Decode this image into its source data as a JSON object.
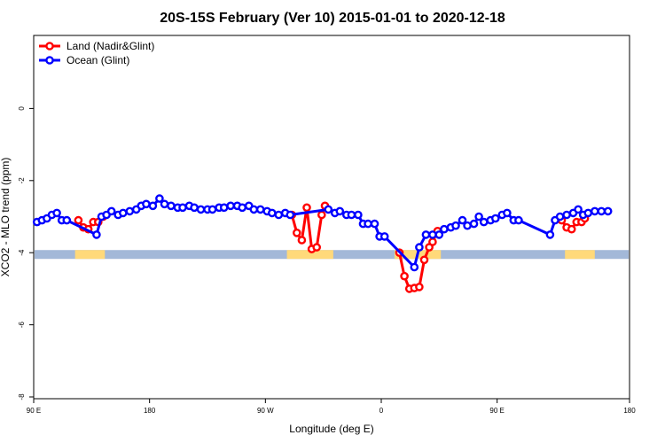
{
  "chart_data": {
    "type": "line",
    "title": "20S-15S February (Ver 10)   2015-01-01 to 2020-12-18",
    "xlabel": "Longitude (deg E)",
    "ylabel": "XCO2 - MLO trend (ppm)",
    "xlim": [
      90,
      450
    ],
    "ylim": [
      -8,
      2
    ],
    "x_ticks": [
      {
        "value": 90,
        "label": "90 E"
      },
      {
        "value": 160,
        "label": "180"
      },
      {
        "value": 230,
        "label": "90 W"
      },
      {
        "value": 300,
        "label": "0"
      },
      {
        "value": 370,
        "label": "90 E"
      },
      {
        "value": 450,
        "label": "180"
      }
    ],
    "y_ticks": [
      {
        "value": 0,
        "label": "0"
      },
      {
        "value": -2,
        "label": "-2"
      },
      {
        "value": -4,
        "label": "-4"
      },
      {
        "value": -6,
        "label": "-6"
      },
      {
        "value": -8,
        "label": "-8"
      }
    ],
    "grid": false,
    "legend_position": "top-left",
    "series": [
      {
        "name": "Land (Nadir&Glint)",
        "color": "#ff0000",
        "segments": [
          [
            [
              117,
              -3.1
            ],
            [
              120,
              -3.3
            ],
            [
              123,
              -3.35
            ],
            [
              126,
              -3.15
            ],
            [
              129,
              -3.15
            ],
            [
              132,
              -3.0
            ]
          ],
          [
            [
              246,
              -2.95
            ],
            [
              249,
              -3.45
            ],
            [
              252,
              -3.65
            ],
            [
              255,
              -2.75
            ],
            [
              258,
              -3.9
            ],
            [
              261,
              -3.85
            ],
            [
              264,
              -2.95
            ],
            [
              266,
              -2.7
            ]
          ],
          [
            [
              311,
              -4.0
            ],
            [
              314,
              -4.65
            ],
            [
              317,
              -5.0
            ],
            [
              320,
              -4.98
            ],
            [
              323,
              -4.95
            ],
            [
              326,
              -4.2
            ],
            [
              329,
              -3.85
            ],
            [
              331,
              -3.7
            ],
            [
              334,
              -3.4
            ]
          ],
          [
            [
              409,
              -3.1
            ],
            [
              412,
              -3.3
            ],
            [
              415,
              -3.35
            ],
            [
              418,
              -3.15
            ],
            [
              421,
              -3.15
            ],
            [
              423,
              -3.05
            ]
          ]
        ]
      },
      {
        "name": "Ocean (Glint)",
        "color": "#0000ff",
        "points": [
          [
            92,
            -3.15
          ],
          [
            95,
            -3.1
          ],
          [
            98,
            -3.05
          ],
          [
            101,
            -2.95
          ],
          [
            104,
            -2.9
          ],
          [
            107,
            -3.1
          ],
          [
            110,
            -3.1
          ],
          [
            128,
            -3.5
          ],
          [
            131,
            -3.0
          ],
          [
            134,
            -2.95
          ],
          [
            137,
            -2.85
          ],
          [
            141,
            -2.95
          ],
          [
            144,
            -2.9
          ],
          [
            148,
            -2.85
          ],
          [
            152,
            -2.8
          ],
          [
            155,
            -2.7
          ],
          [
            158,
            -2.65
          ],
          [
            162,
            -2.7
          ],
          [
            166,
            -2.5
          ],
          [
            169,
            -2.65
          ],
          [
            173,
            -2.7
          ],
          [
            177,
            -2.75
          ],
          [
            180,
            -2.75
          ],
          [
            184,
            -2.7
          ],
          [
            187,
            -2.75
          ],
          [
            191,
            -2.8
          ],
          [
            195,
            -2.8
          ],
          [
            198,
            -2.8
          ],
          [
            202,
            -2.75
          ],
          [
            205,
            -2.75
          ],
          [
            209,
            -2.7
          ],
          [
            213,
            -2.7
          ],
          [
            216,
            -2.75
          ],
          [
            220,
            -2.7
          ],
          [
            223,
            -2.8
          ],
          [
            227,
            -2.8
          ],
          [
            231,
            -2.85
          ],
          [
            234,
            -2.9
          ],
          [
            238,
            -2.95
          ],
          [
            242,
            -2.9
          ],
          [
            245,
            -2.95
          ],
          [
            268,
            -2.8
          ],
          [
            272,
            -2.9
          ],
          [
            275,
            -2.85
          ],
          [
            279,
            -2.95
          ],
          [
            282,
            -2.95
          ],
          [
            286,
            -2.95
          ],
          [
            289,
            -3.2
          ],
          [
            292,
            -3.2
          ],
          [
            296,
            -3.2
          ],
          [
            299,
            -3.55
          ],
          [
            302,
            -3.55
          ],
          [
            320,
            -4.4
          ],
          [
            323,
            -3.85
          ],
          [
            327,
            -3.5
          ],
          [
            331,
            -3.5
          ],
          [
            335,
            -3.5
          ],
          [
            338,
            -3.35
          ],
          [
            342,
            -3.3
          ],
          [
            345,
            -3.25
          ],
          [
            349,
            -3.1
          ],
          [
            352,
            -3.25
          ],
          [
            356,
            -3.2
          ],
          [
            359,
            -3.0
          ],
          [
            362,
            -3.15
          ],
          [
            366,
            -3.1
          ],
          [
            369,
            -3.05
          ],
          [
            373,
            -2.95
          ],
          [
            376,
            -2.9
          ],
          [
            380,
            -3.1
          ],
          [
            383,
            -3.1
          ],
          [
            402,
            -3.5
          ],
          [
            405,
            -3.1
          ],
          [
            408,
            -3.0
          ],
          [
            412,
            -2.95
          ],
          [
            416,
            -2.9
          ],
          [
            419,
            -2.8
          ],
          [
            422,
            -2.95
          ],
          [
            425,
            -2.9
          ],
          [
            429,
            -2.85
          ],
          [
            433,
            -2.85
          ],
          [
            437,
            -2.85
          ]
        ]
      }
    ],
    "land_mask_bands": [
      [
        115,
        133
      ],
      [
        243,
        271
      ],
      [
        308,
        336
      ],
      [
        411,
        429
      ]
    ],
    "land_mask_color": "#ffd97a",
    "ocean_mask_color": "#a3b8d8",
    "mask_y": -4.05,
    "legend": {
      "land_label": "Land (Nadir&Glint)",
      "ocean_label": "Ocean (Glint)"
    }
  }
}
